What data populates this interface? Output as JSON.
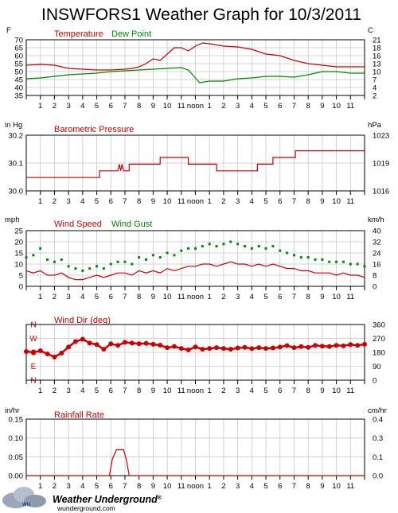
{
  "title": "INSWFORS1 Weather Graph for 10/3/2011",
  "x_tick_labels": [
    "1",
    "2",
    "3",
    "4",
    "5",
    "6",
    "7",
    "8",
    "9",
    "10",
    "11",
    "noon",
    "1",
    "2",
    "3",
    "4",
    "5",
    "6",
    "7",
    "8",
    "9",
    "10",
    "11"
  ],
  "colors": {
    "red": "#cc0000",
    "green": "#008800",
    "grid": "#c8c8c8",
    "frame": "#000000"
  },
  "footer": {
    "brand": "Weather Underground",
    "trademark": "®",
    "url": "wunderground.com"
  },
  "chart_data": [
    {
      "type": "line",
      "left_unit": "F",
      "right_unit": "C",
      "left_ticks": [
        "70",
        "65",
        "60",
        "55",
        "50",
        "45",
        "40",
        "35"
      ],
      "right_ticks": [
        "21",
        "18",
        "16",
        "13",
        "10",
        "7",
        "4",
        "2"
      ],
      "ylim": [
        35,
        70
      ],
      "x_unit": "hour",
      "series": [
        {
          "name": "Temperature",
          "color": "#cc0000",
          "x": [
            0,
            1,
            2,
            3,
            4,
            5,
            6,
            7,
            7.5,
            8,
            8.5,
            9,
            9.5,
            10,
            10.5,
            11,
            11.5,
            12,
            12.5,
            13,
            14,
            15,
            16,
            17,
            18,
            19,
            20,
            21,
            22,
            23,
            24
          ],
          "y": [
            54,
            54.5,
            54,
            52,
            51.5,
            51,
            51,
            51.5,
            52,
            53,
            55,
            58,
            57,
            61,
            65,
            65,
            63,
            66,
            68,
            67.5,
            66,
            65.5,
            64,
            61,
            60,
            57,
            55,
            54,
            53,
            53,
            53
          ]
        },
        {
          "name": "Dew Point",
          "color": "#008800",
          "x": [
            0,
            1,
            2,
            3,
            4,
            5,
            6,
            7,
            8,
            9,
            10,
            11,
            11.5,
            12,
            12.3,
            13,
            14,
            15,
            16,
            17,
            18,
            19,
            20,
            21,
            22,
            23,
            24
          ],
          "y": [
            45.5,
            46,
            47,
            48,
            48.5,
            49,
            50,
            50.5,
            51,
            51.5,
            52,
            52.5,
            51,
            46,
            43,
            44,
            44,
            45.5,
            46,
            47,
            47,
            46.5,
            48,
            50,
            50,
            49,
            49
          ]
        }
      ]
    },
    {
      "type": "line",
      "left_unit": "in Hg",
      "right_unit": "hPa",
      "left_ticks": [
        "30.2",
        "30.1",
        "30.0"
      ],
      "right_ticks": [
        "1023",
        "1019",
        "1016"
      ],
      "ylim": [
        30.0,
        30.25
      ],
      "series": [
        {
          "name": "Barometric Pressure",
          "color": "#cc0000",
          "x": [
            0,
            5.2,
            5.2,
            6.5,
            6.6,
            6.7,
            6.8,
            6.9,
            7.3,
            7.3,
            9.5,
            9.5,
            11.5,
            11.5,
            13.5,
            13.5,
            16.4,
            16.4,
            17.5,
            17.5,
            19.1,
            19.1,
            24
          ],
          "y": [
            30.06,
            30.06,
            30.09,
            30.09,
            30.12,
            30.09,
            30.12,
            30.09,
            30.09,
            30.12,
            30.12,
            30.15,
            30.15,
            30.12,
            30.12,
            30.09,
            30.09,
            30.12,
            30.12,
            30.15,
            30.15,
            30.18,
            30.18
          ]
        }
      ]
    },
    {
      "type": "line",
      "left_unit": "mph",
      "right_unit": "km/h",
      "left_ticks": [
        "25",
        "20",
        "15",
        "10",
        "5",
        "0"
      ],
      "right_ticks": [
        "40",
        "32",
        "24",
        "16",
        "8",
        "0"
      ],
      "ylim": [
        0,
        25
      ],
      "series": [
        {
          "name": "Wind Speed",
          "color": "#cc0000",
          "x": [
            0,
            0.5,
            1,
            1.5,
            2,
            2.5,
            3,
            3.5,
            4,
            4.5,
            5,
            5.5,
            6,
            6.5,
            7,
            7.5,
            8,
            8.5,
            9,
            9.5,
            10,
            10.5,
            11,
            11.5,
            12,
            12.5,
            13,
            13.5,
            14,
            14.5,
            15,
            15.5,
            16,
            16.5,
            17,
            17.5,
            18,
            18.5,
            19,
            19.5,
            20,
            20.5,
            21,
            21.5,
            22,
            22.5,
            23,
            23.5,
            24
          ],
          "y": [
            7,
            6,
            7,
            5,
            5,
            6,
            4,
            3,
            3,
            4,
            5,
            4,
            5,
            6,
            6,
            5,
            7,
            6,
            7,
            6,
            8,
            7,
            8,
            9,
            9,
            10,
            10,
            9,
            10,
            11,
            10,
            10,
            9,
            10,
            9,
            10,
            9,
            8,
            8,
            7,
            7,
            6,
            6,
            6,
            5,
            6,
            5,
            5,
            4
          ]
        },
        {
          "name": "Wind Gust",
          "color": "#008800",
          "style": "points",
          "x": [
            0,
            0.5,
            1,
            1.5,
            2,
            2.5,
            3,
            3.5,
            4,
            4.5,
            5,
            5.5,
            6,
            6.5,
            7,
            7.5,
            8,
            8.5,
            9,
            9.5,
            10,
            10.5,
            11,
            11.5,
            12,
            12.5,
            13,
            13.5,
            14,
            14.5,
            15,
            15.5,
            16,
            16.5,
            17,
            17.5,
            18,
            18.5,
            19,
            19.5,
            20,
            20.5,
            21,
            21.5,
            22,
            22.5,
            23,
            23.5,
            24
          ],
          "y": [
            13,
            14,
            17,
            12,
            11,
            12,
            9,
            8,
            7,
            8,
            9,
            8,
            10,
            11,
            11,
            10,
            13,
            12,
            14,
            13,
            15,
            14,
            16,
            17,
            17,
            18,
            19,
            18,
            19,
            20,
            19,
            18,
            17,
            18,
            17,
            18,
            16,
            15,
            14,
            13,
            13,
            12,
            12,
            11,
            11,
            11,
            10,
            10,
            9
          ]
        }
      ]
    },
    {
      "type": "scatter",
      "title": "Wind Dir (deg)",
      "left_ticks": [
        "N",
        "W",
        "S",
        "E",
        "N"
      ],
      "right_ticks": [
        "360",
        "270",
        "180",
        "90",
        "0"
      ],
      "ylim": [
        0,
        360
      ],
      "series": [
        {
          "name": "Wind Dir (deg)",
          "color": "#cc0000",
          "x": [
            0,
            0.5,
            1,
            1.5,
            2,
            2.5,
            3,
            3.5,
            4,
            4.5,
            5,
            5.5,
            6,
            6.5,
            7,
            7.5,
            8,
            8.5,
            9,
            9.5,
            10,
            10.5,
            11,
            11.5,
            12,
            12.5,
            13,
            13.5,
            14,
            14.5,
            15,
            15.5,
            16,
            16.5,
            17,
            17.5,
            18,
            18.5,
            19,
            19.5,
            20,
            20.5,
            21,
            21.5,
            22,
            22.5,
            23,
            23.5,
            24
          ],
          "y": [
            185,
            180,
            190,
            170,
            150,
            175,
            215,
            250,
            265,
            240,
            230,
            200,
            235,
            225,
            245,
            240,
            235,
            238,
            232,
            226,
            210,
            218,
            205,
            196,
            215,
            200,
            205,
            210,
            205,
            200,
            208,
            212,
            204,
            210,
            205,
            208,
            214,
            224,
            210,
            217,
            212,
            225,
            220,
            218,
            225,
            222,
            230,
            225,
            232
          ]
        }
      ]
    },
    {
      "type": "line",
      "left_unit": "in/hr",
      "right_unit": "cm/hr",
      "left_ticks": [
        "0.15",
        "0.10",
        "0.05",
        "0.00"
      ],
      "right_ticks": [
        "0.4",
        "0.3",
        "0.1",
        "0.0"
      ],
      "ylim": [
        0,
        0.175
      ],
      "series": [
        {
          "name": "Rainfall Rate",
          "color": "#cc0000",
          "x": [
            0,
            5.9,
            6.1,
            6.4,
            6.9,
            7.1,
            7.3,
            24
          ],
          "y": [
            0,
            0,
            0.05,
            0.08,
            0.08,
            0.05,
            0,
            0
          ]
        }
      ]
    }
  ]
}
